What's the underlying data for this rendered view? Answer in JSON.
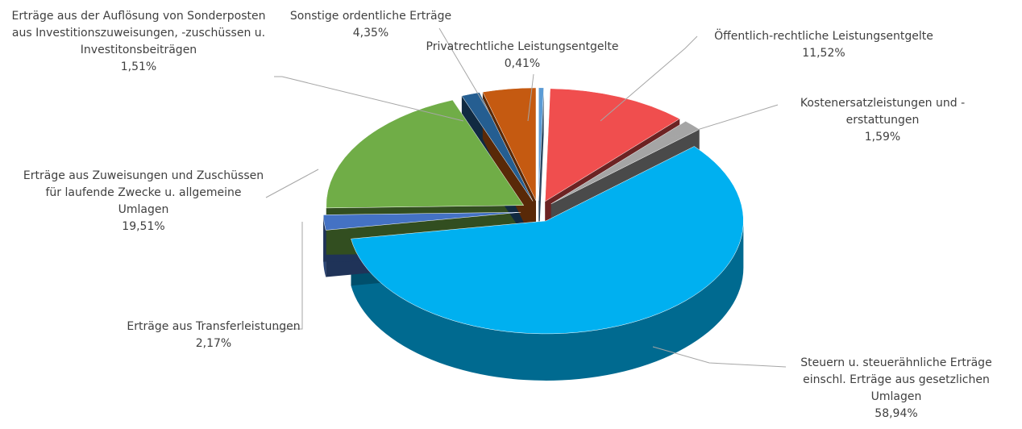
{
  "chart_data": {
    "type": "pie",
    "categories": [
      "Privatrechtliche Leistungsentgelte",
      "Öffentlich-rechtliche Leistungsentgelte",
      "Kostenersatzleistungen und -erstattungen",
      "Steuern u. steuerähnliche Erträge einschl. Erträge aus gesetzlichen Umlagen",
      "Erträge aus Transferleistungen",
      "Erträge aus Zuweisungen und Zuschüssen für laufende Zwecke u. allgemeine Umlagen",
      "Erträge aus der Auflösung von Sonderposten aus Investitionszuweisungen, -zuschüssen u. Investitonsbeiträgen",
      "Sonstige ordentliche Erträge"
    ],
    "values": [
      0.41,
      11.52,
      1.59,
      58.94,
      2.17,
      19.51,
      1.51,
      4.35
    ],
    "value_labels": [
      "0,41%",
      "11,52%",
      "1,59%",
      "58,94%",
      "2,17%",
      "19,51%",
      "1,51%",
      "4,35%"
    ],
    "colors": [
      "#5b9bd5",
      "#f04e4e",
      "#a5a5a5",
      "#00b0f0",
      "#4472c4",
      "#70ad47",
      "#255e91",
      "#c55a11"
    ]
  }
}
